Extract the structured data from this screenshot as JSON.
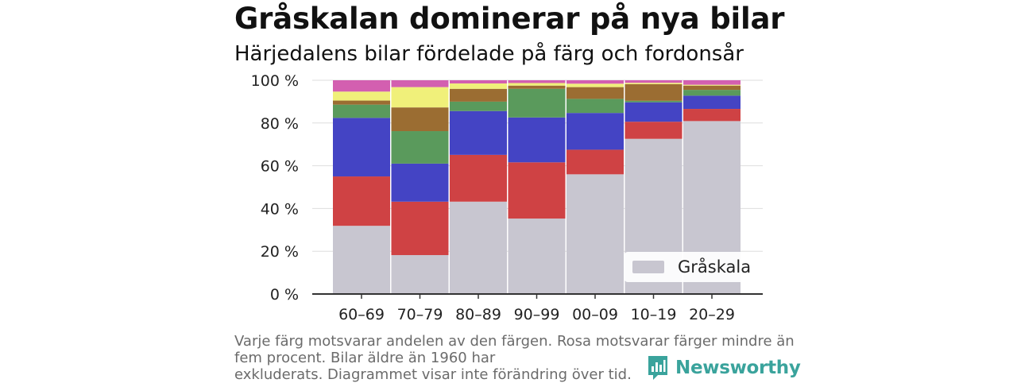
{
  "title": "Gråskalan dominerar på nya bilar",
  "subtitle": "Härjedalens bilar fördelade på färg och fordonsår",
  "footnote": {
    "line1": "Varje färg motsvarar andelen av den färgen. Rosa motsvarar färger mindre än",
    "line2": "fem procent. Bilar äldre än 1960 har",
    "line3": "exkluderats. Diagrammet visar inte förändring över tid."
  },
  "logo": {
    "text": "Newsworthy",
    "icon": "newsworthy-logo-icon",
    "color": "#3aa39c"
  },
  "chart_data": {
    "type": "bar",
    "stacked": true,
    "categories": [
      "60–69",
      "70–79",
      "80–89",
      "90–99",
      "00–09",
      "10–19",
      "20–29"
    ],
    "ylim": [
      0,
      100
    ],
    "yticks": [
      0,
      20,
      40,
      60,
      80,
      100
    ],
    "ytick_labels": [
      "0 %",
      "20 %",
      "40 %",
      "60 %",
      "80 %",
      "100 %"
    ],
    "grid": true,
    "legend": {
      "placement": "bottom-right",
      "entries": [
        "Gråskala"
      ]
    },
    "series": [
      {
        "name": "Gråskala",
        "color": "#c8c6d0",
        "values": [
          31.9,
          18.2,
          43.2,
          35.3,
          56.0,
          72.6,
          80.9
        ]
      },
      {
        "color": "#cf4244",
        "values": [
          23.1,
          25.0,
          21.9,
          26.3,
          11.5,
          8.0,
          5.7
        ]
      },
      {
        "color": "#4444c4",
        "values": [
          27.4,
          17.8,
          20.5,
          21.0,
          17.2,
          9.1,
          6.2
        ]
      },
      {
        "color": "#5a9a5c",
        "values": [
          6.2,
          15.2,
          4.4,
          13.4,
          6.6,
          0.7,
          2.7
        ]
      },
      {
        "color": "#9b6d32",
        "values": [
          1.9,
          11.1,
          6.0,
          1.5,
          5.5,
          7.8,
          2.0
        ]
      },
      {
        "color": "#f0f07a",
        "values": [
          4.2,
          9.5,
          2.5,
          1.2,
          1.6,
          0.6,
          0.4
        ]
      },
      {
        "color": "#d35fb0",
        "values": [
          5.3,
          3.2,
          1.5,
          1.3,
          1.6,
          1.2,
          2.1
        ]
      }
    ]
  }
}
